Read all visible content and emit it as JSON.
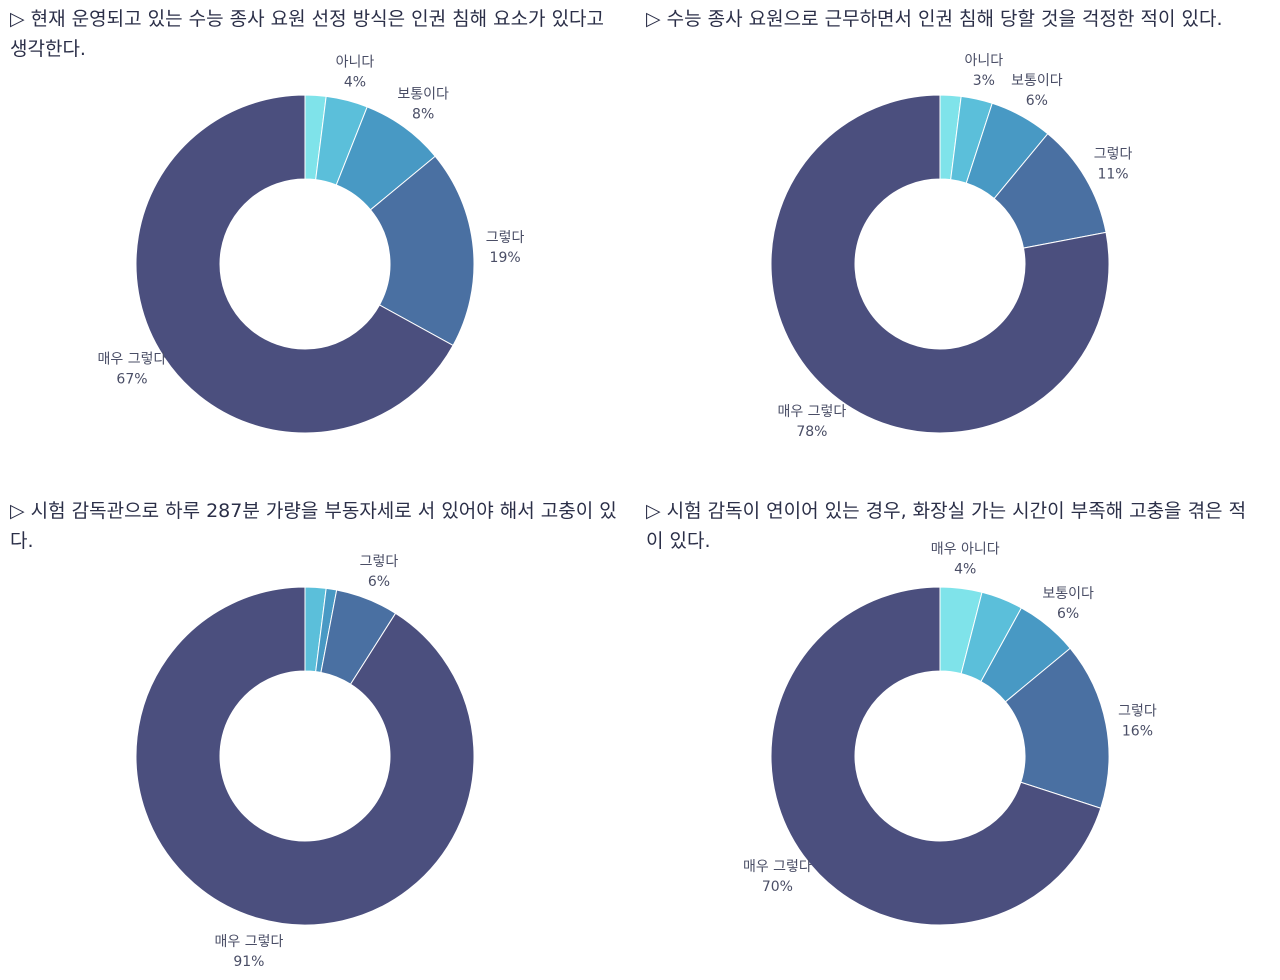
{
  "chart_data": [
    {
      "type": "pie",
      "title": "▷ 현재 운영되고 있는 수능 종사 요원 선정 방식은 인권 침해 요소가 있다고 생각한다.",
      "slices": [
        {
          "label": "",
          "value": 2,
          "display": ""
        },
        {
          "label": "아니다",
          "value": 4,
          "display": "4%"
        },
        {
          "label": "보통이다",
          "value": 8,
          "display": "8%"
        },
        {
          "label": "그렇다",
          "value": 19,
          "display": "19%"
        },
        {
          "label": "매우 그렇다",
          "value": 67,
          "display": "67%"
        }
      ]
    },
    {
      "type": "pie",
      "title": "▷ 수능 종사 요원으로 근무하면서 인권 침해 당할 것을 걱정한 적이 있다.",
      "slices": [
        {
          "label": "",
          "value": 2,
          "display": ""
        },
        {
          "label": "아니다",
          "value": 3,
          "display": "3%"
        },
        {
          "label": "보통이다",
          "value": 6,
          "display": "6%"
        },
        {
          "label": "그렇다",
          "value": 11,
          "display": "11%"
        },
        {
          "label": "매우 그렇다",
          "value": 78,
          "display": "78%"
        }
      ]
    },
    {
      "type": "pie",
      "title": "▷ 시험 감독관으로 하루 287분 가량을 부동자세로 서 있어야 해서 고충이 있다.",
      "slices": [
        {
          "label": "",
          "value": 2,
          "display": ""
        },
        {
          "label": "",
          "value": 1,
          "display": ""
        },
        {
          "label": "그렇다",
          "value": 6,
          "display": "6%"
        },
        {
          "label": "매우 그렇다",
          "value": 91,
          "display": "91%"
        }
      ]
    },
    {
      "type": "pie",
      "title": "▷ 시험 감독이 연이어 있는 경우, 화장실 가는 시간이 부족해 고충을 겪은 적이 있다.",
      "slices": [
        {
          "label": "매우 아니다",
          "value": 4,
          "display": "4%"
        },
        {
          "label": "",
          "value": 4,
          "display": ""
        },
        {
          "label": "보통이다",
          "value": 6,
          "display": "6%"
        },
        {
          "label": "그렇다",
          "value": 16,
          "display": "16%"
        },
        {
          "label": "매우 그렇다",
          "value": 70,
          "display": "70%"
        }
      ]
    }
  ],
  "colors": [
    "#7fe3ea",
    "#5bbfda",
    "#4899c4",
    "#4a70a2",
    "#4b4f7e"
  ]
}
